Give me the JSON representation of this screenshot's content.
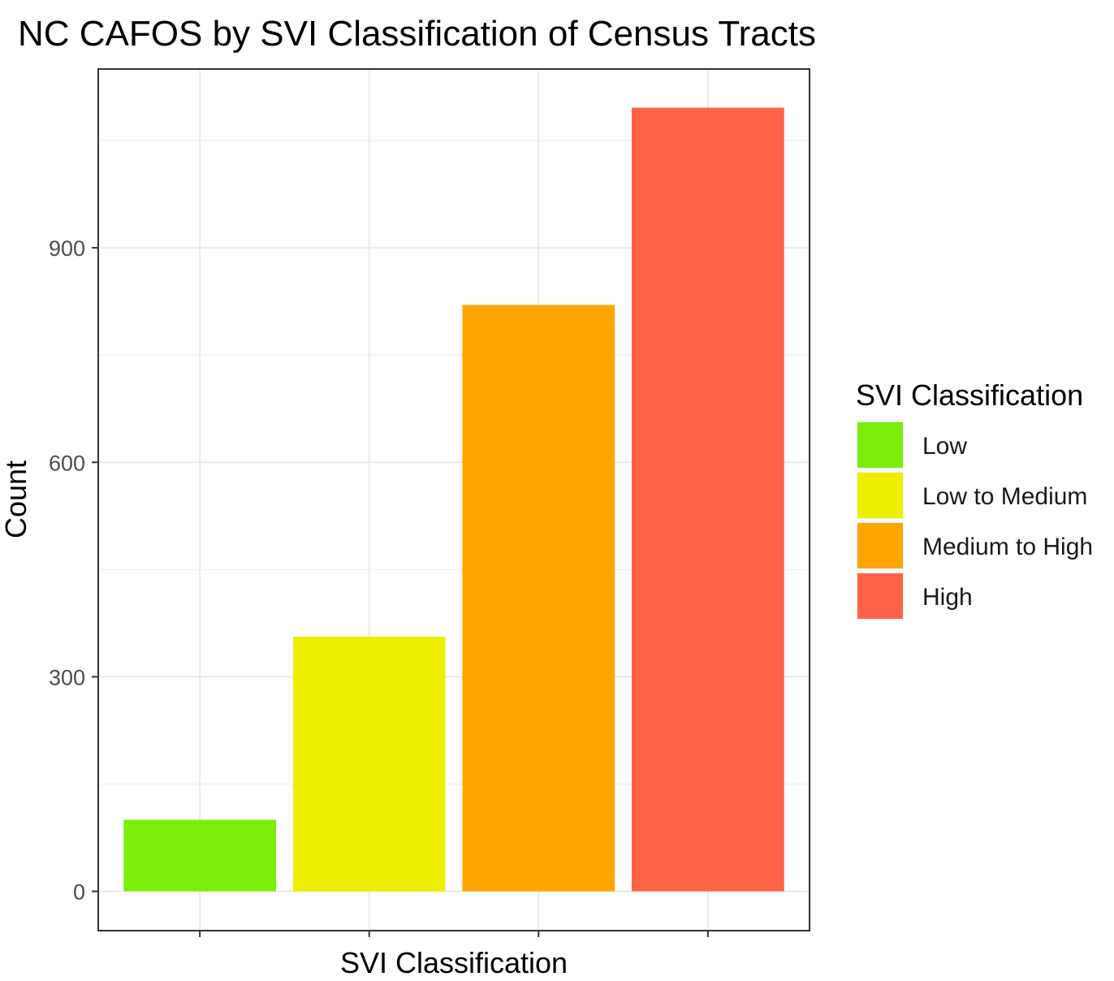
{
  "chart_data": {
    "type": "bar",
    "title": "NC CAFOS by SVI Classification of Census Tracts",
    "xlabel": "SVI Classification",
    "ylabel": "Count",
    "categories": [
      "Low",
      "Low to Medium",
      "Medium to High",
      "High"
    ],
    "values": [
      100,
      356,
      820,
      1096
    ],
    "colors": [
      "#7cee0c",
      "#eeee00",
      "#ffa500",
      "#ff6347"
    ],
    "ylim": [
      -55,
      1150
    ],
    "yticks": [
      0,
      300,
      600,
      900
    ],
    "ytick_labels": [
      "0",
      "300",
      "600",
      "900"
    ],
    "xtick_labels": [
      "",
      "",
      "",
      ""
    ],
    "grid": true,
    "legend": {
      "title": "SVI Classification",
      "placement": "right",
      "entries": [
        "Low",
        "Low to Medium",
        "Medium to High",
        "High"
      ]
    }
  }
}
